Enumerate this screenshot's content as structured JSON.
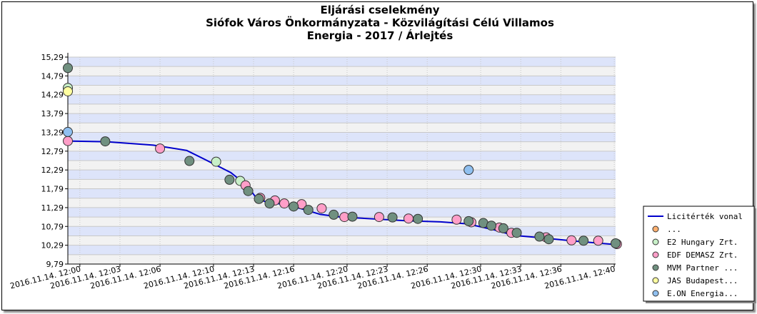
{
  "chart_data": {
    "type": "scatter",
    "title": [
      "Eljárási cselekmény",
      "Siófok Város Önkormányzata - Közvilágítási Célú Villamos",
      "Energia - 2017 / Árlejtés"
    ],
    "xlabel": "",
    "ylabel": "",
    "ylim": [
      9.79,
      15.29
    ],
    "y_ticks": [
      "15,29",
      "14,79",
      "14,29",
      "13,79",
      "13,29",
      "12,79",
      "12,29",
      "11,79",
      "11,29",
      "10,79",
      "10,29",
      "9,79"
    ],
    "x_unit": "minutes after 2016.11.14 12:00",
    "x_range": [
      -0.9,
      40.1
    ],
    "x_ticks": [
      {
        "x": 0,
        "label": "2016.11.14. 12:00"
      },
      {
        "x": 3,
        "label": "2016.11.14. 12:03"
      },
      {
        "x": 6,
        "label": "2016.11.14. 12:06"
      },
      {
        "x": 10,
        "label": "2016.11.14. 12:10"
      },
      {
        "x": 13,
        "label": "2016.11.14. 12:13"
      },
      {
        "x": 16,
        "label": "2016.11.14. 12:16"
      },
      {
        "x": 20,
        "label": "2016.11.14. 12:20"
      },
      {
        "x": 23,
        "label": "2016.11.14. 12:23"
      },
      {
        "x": 26,
        "label": "2016.11.14. 12:26"
      },
      {
        "x": 30,
        "label": "2016.11.14. 12:30"
      },
      {
        "x": 33,
        "label": "2016.11.14. 12:33"
      },
      {
        "x": 36,
        "label": "2016.11.14. 12:36"
      },
      {
        "x": 40,
        "label": "2016.11.14. 12:40"
      }
    ],
    "grid": true,
    "legend_position": "bottom-right",
    "series": [
      {
        "name": "Licitérték vonal",
        "kind": "line",
        "color": "#0000cc",
        "points": [
          [
            -0.9,
            13.06
          ],
          [
            2.0,
            13.04
          ],
          [
            5.5,
            12.95
          ],
          [
            8.0,
            12.81
          ],
          [
            9.3,
            12.58
          ],
          [
            11.3,
            12.22
          ],
          [
            12.5,
            11.88
          ],
          [
            13.2,
            11.55
          ],
          [
            14.0,
            11.43
          ],
          [
            15.2,
            11.38
          ],
          [
            16.5,
            11.27
          ],
          [
            18.0,
            11.11
          ],
          [
            19.5,
            11.04
          ],
          [
            22.0,
            10.99
          ],
          [
            24.5,
            10.94
          ],
          [
            27.0,
            10.91
          ],
          [
            29.0,
            10.86
          ],
          [
            31.0,
            10.7
          ],
          [
            32.5,
            10.55
          ],
          [
            34.5,
            10.49
          ],
          [
            37.0,
            10.4
          ],
          [
            39.0,
            10.34
          ],
          [
            40.1,
            10.31
          ]
        ]
      },
      {
        "name": "...",
        "kind": "marker",
        "color": "#ffb070",
        "points": []
      },
      {
        "name": "E2 Hungary Zrt.",
        "kind": "marker",
        "color": "#c8f0c8",
        "points": [
          [
            -0.9,
            14.47
          ],
          [
            10.2,
            12.51
          ],
          [
            12.0,
            12.0
          ]
        ]
      },
      {
        "name": "EDF DEMASZ Zrt.",
        "kind": "marker",
        "color": "#ff9ec8",
        "points": [
          [
            -0.9,
            13.06
          ],
          [
            6.0,
            12.86
          ],
          [
            12.4,
            11.88
          ],
          [
            13.5,
            11.55
          ],
          [
            14.6,
            11.48
          ],
          [
            15.3,
            11.4
          ],
          [
            16.6,
            11.38
          ],
          [
            18.1,
            11.27
          ],
          [
            19.8,
            11.04
          ],
          [
            22.4,
            11.04
          ],
          [
            24.6,
            11.0
          ],
          [
            28.2,
            10.97
          ],
          [
            29.3,
            10.9
          ],
          [
            31.4,
            10.76
          ],
          [
            32.3,
            10.62
          ],
          [
            34.9,
            10.5
          ],
          [
            36.8,
            10.42
          ],
          [
            38.8,
            10.41
          ],
          [
            40.2,
            10.32
          ]
        ]
      },
      {
        "name": "MVM Partner ...",
        "kind": "marker",
        "color": "#709080",
        "points": [
          [
            -0.9,
            15.0
          ],
          [
            1.9,
            13.05
          ],
          [
            8.2,
            12.53
          ],
          [
            11.2,
            12.03
          ],
          [
            12.6,
            11.73
          ],
          [
            13.4,
            11.52
          ],
          [
            14.2,
            11.4
          ],
          [
            16.0,
            11.32
          ],
          [
            17.1,
            11.23
          ],
          [
            19.0,
            11.1
          ],
          [
            20.4,
            11.05
          ],
          [
            23.4,
            11.03
          ],
          [
            25.3,
            10.99
          ],
          [
            29.1,
            10.93
          ],
          [
            30.2,
            10.88
          ],
          [
            30.8,
            10.81
          ],
          [
            31.7,
            10.74
          ],
          [
            32.7,
            10.62
          ],
          [
            34.4,
            10.52
          ],
          [
            35.1,
            10.45
          ],
          [
            37.7,
            10.41
          ],
          [
            40.1,
            10.34
          ]
        ]
      },
      {
        "name": "JAS Budapest...",
        "kind": "marker",
        "color": "#ffffa0",
        "points": [
          [
            -0.9,
            14.38
          ]
        ]
      },
      {
        "name": "E.ON Energia...",
        "kind": "marker",
        "color": "#90c0f0",
        "points": [
          [
            -0.9,
            13.3
          ],
          [
            29.1,
            12.29
          ]
        ]
      }
    ]
  }
}
